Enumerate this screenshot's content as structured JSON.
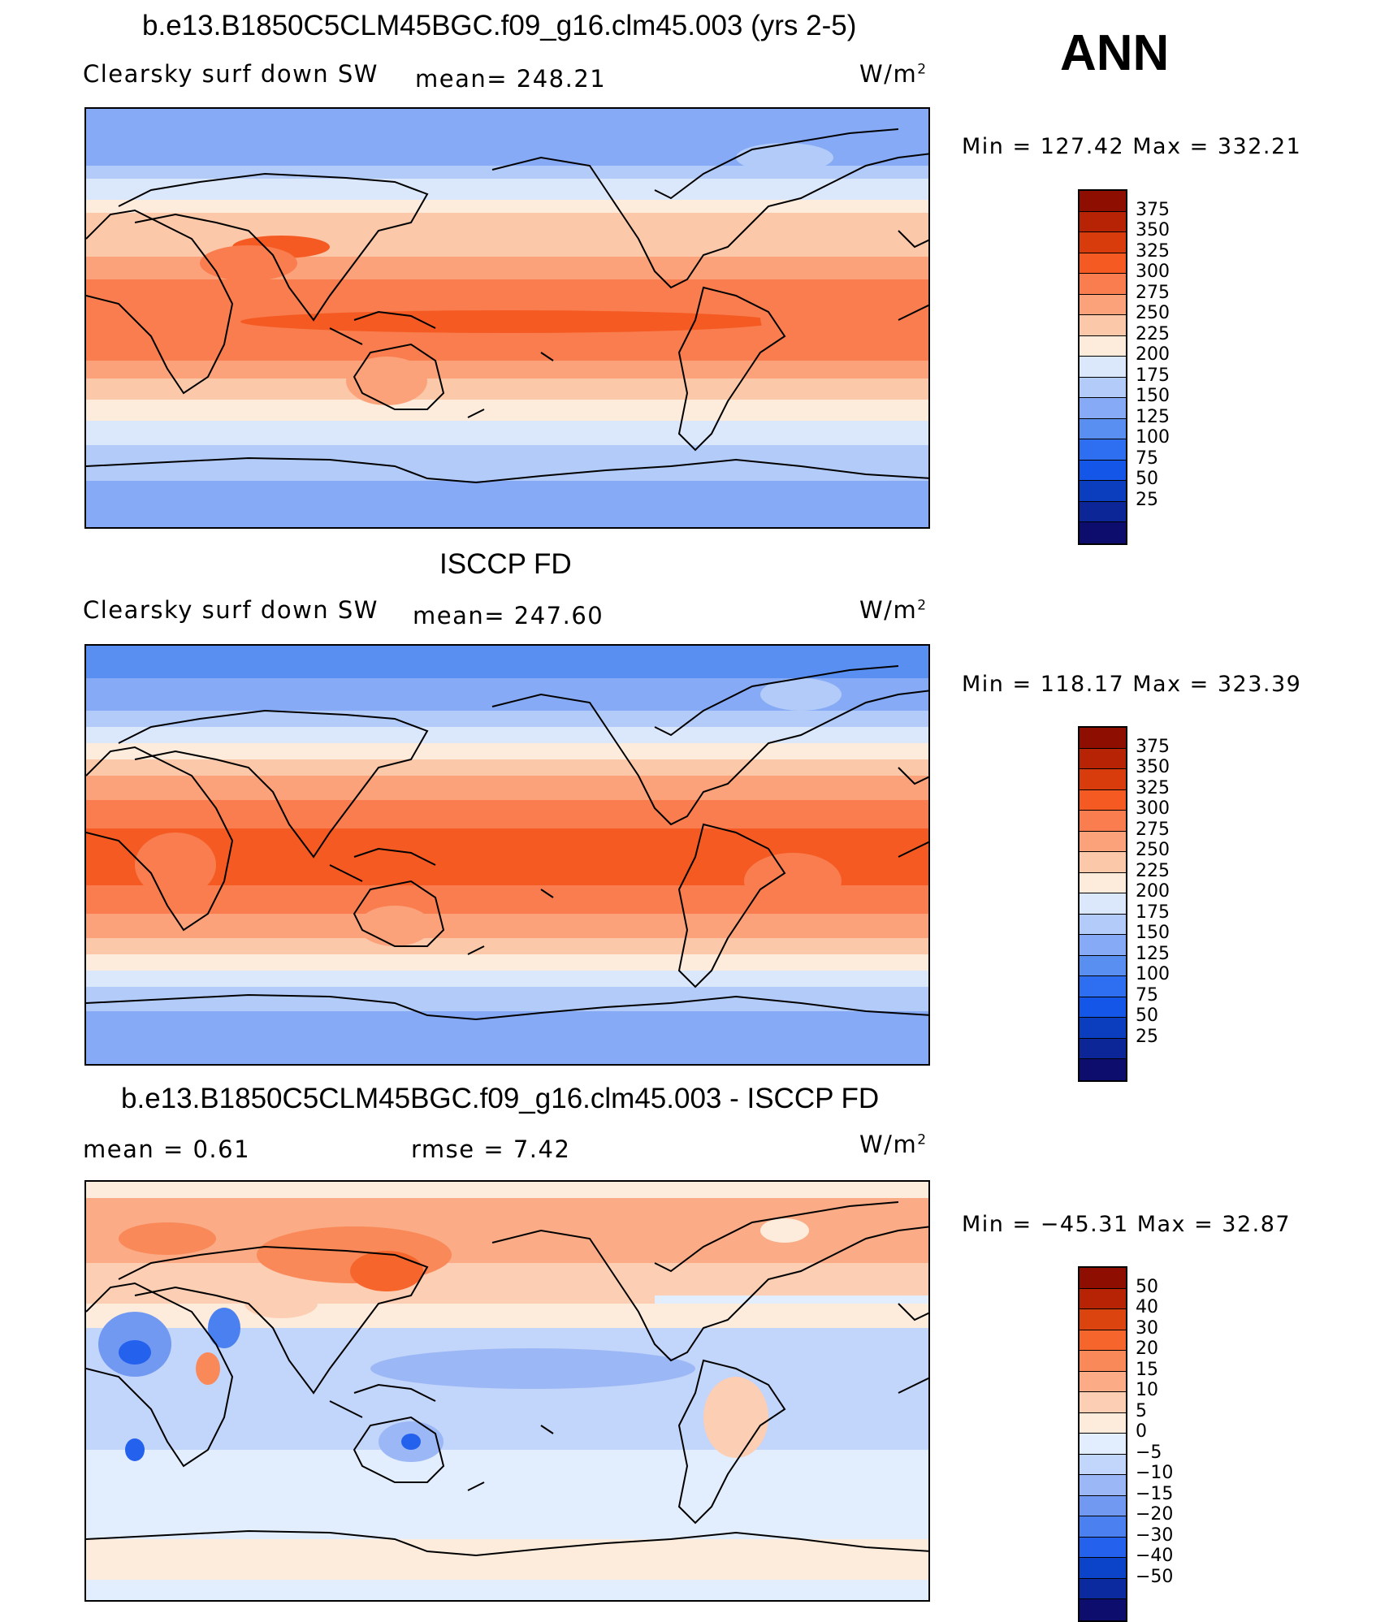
{
  "season": "ANN",
  "palette_abs": [
    "#0d0d6e",
    "#0c2697",
    "#0b3dbf",
    "#1457e8",
    "#2e6ef0",
    "#5a8ff2",
    "#86aaf5",
    "#b3cbf8",
    "#dbe8fc",
    "#fdecdc",
    "#fcc8aa",
    "#fba27a",
    "#f97d4e",
    "#f55a22",
    "#d93c0c",
    "#b72305",
    "#8e0e02"
  ],
  "palette_diff": [
    "#0d0d6e",
    "#0b2a9f",
    "#0b44c9",
    "#2461ed",
    "#4a80f0",
    "#7299f2",
    "#9cb7f6",
    "#c2d5fa",
    "#e2edfd",
    "#fdecdc",
    "#fcceb3",
    "#fbab86",
    "#f98958",
    "#f6652b",
    "#db430f",
    "#b72305",
    "#8e0e02"
  ],
  "colorbar_abs_labels": [
    "375",
    "350",
    "325",
    "300",
    "275",
    "250",
    "225",
    "200",
    "175",
    "150",
    "125",
    "100",
    "75",
    "50",
    "25"
  ],
  "colorbar_diff_labels": [
    "50",
    "40",
    "30",
    "20",
    "15",
    "10",
    "5",
    "0",
    "−5",
    "−10",
    "−15",
    "−20",
    "−30",
    "−40",
    "−50"
  ],
  "panel_top": {
    "title": "b.e13.B1850C5CLM45BGC.f09_g16.clm45.003 (yrs 2-5)",
    "variable": "Clearsky surf down SW",
    "mean_text": "mean= 248.21",
    "units": "W/m",
    "units_exp": "2",
    "minmax": "Min = 127.42 Max = 332.21"
  },
  "panel_mid": {
    "title": "ISCCP FD",
    "variable": "Clearsky surf down SW",
    "mean_text": "mean= 247.60",
    "units": "W/m",
    "units_exp": "2",
    "minmax": "Min = 118.17 Max = 323.39"
  },
  "panel_bot": {
    "title": "b.e13.B1850C5CLM45BGC.f09_g16.clm45.003 - ISCCP FD",
    "mean_text": "mean =    0.61",
    "rmse_text": "rmse =    7.42",
    "units": "W/m",
    "units_exp": "2",
    "minmax": "Min = −45.31 Max =   32.87"
  }
}
